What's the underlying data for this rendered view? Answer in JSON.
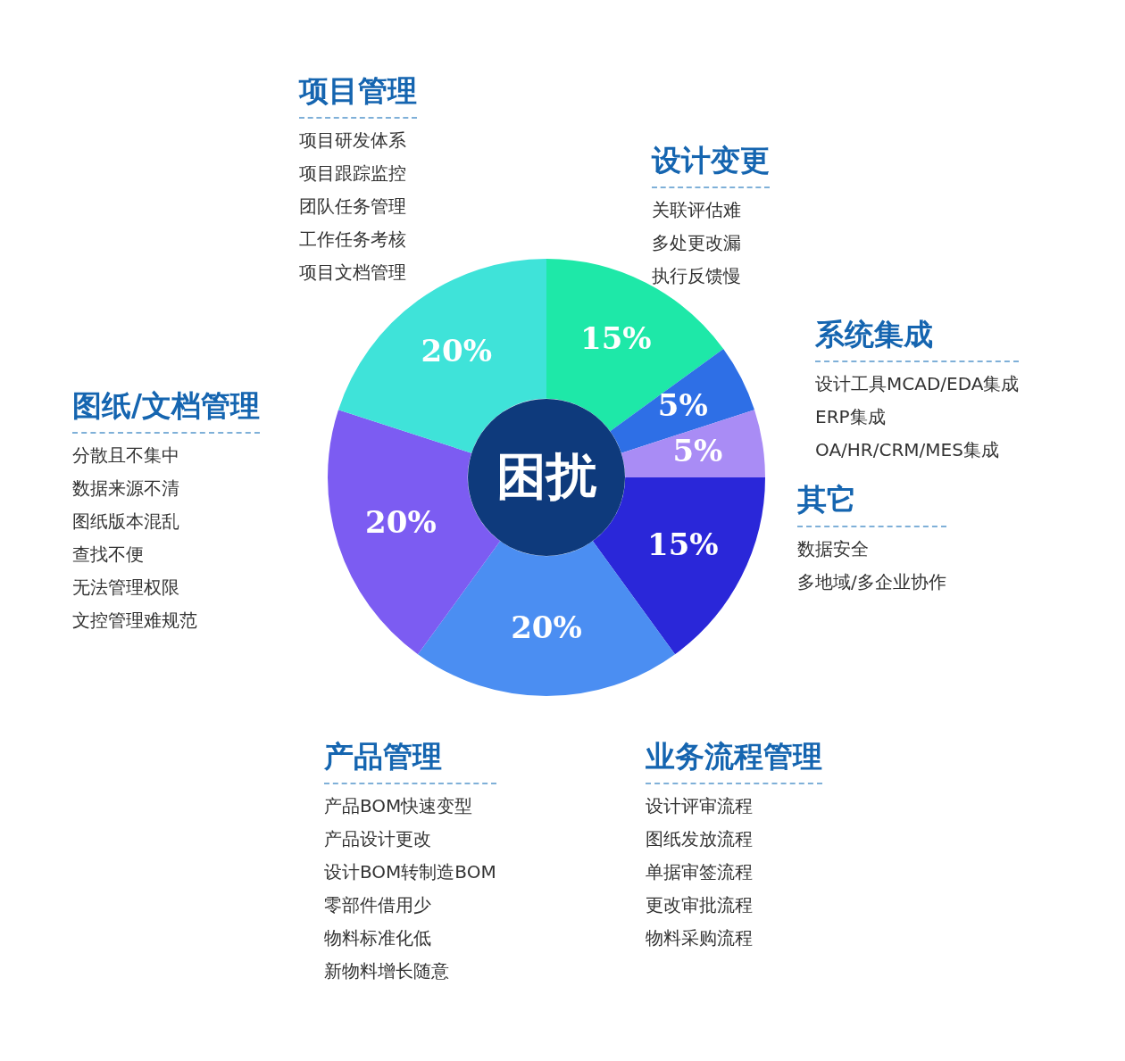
{
  "chart_data": {
    "type": "donut",
    "categories": [
      "设计变更",
      "系统集成",
      "其它",
      "业务流程管理",
      "产品管理",
      "图纸/文档管理",
      "项目管理"
    ],
    "values": [
      15,
      5,
      5,
      15,
      20,
      20,
      20
    ],
    "value_labels": [
      "15%",
      "5%",
      "5%",
      "15%",
      "20%",
      "20%",
      "20%"
    ],
    "colors": [
      "#1ee8a8",
      "#2e6fe6",
      "#a98cf5",
      "#2a27d9",
      "#4b8ef2",
      "#7c5cf2",
      "#3fe3d9"
    ],
    "annotations": [
      "困扰",
      "关联评估难",
      "多处更改漏",
      "执行反馈慢",
      "设计工具MCAD/EDA集成",
      "ERP集成",
      "OA/HR/CRM/MES集成",
      "数据安全",
      "多地域/多企业协作",
      "设计评审流程",
      "图纸发放流程",
      "单据审签流程",
      "更改审批流程",
      "物料采购流程",
      "产品BOM快速变型",
      "产品设计更改",
      "设计BOM转制造BOM",
      "零部件借用少",
      "物料标准化低",
      "新物料增长随意",
      "分散且不集中",
      "数据来源不清",
      "图纸版本混乱",
      "查找不便",
      "无法管理权限",
      "文控管理难规范",
      "项目研发体系",
      "项目跟踪监控",
      "团队任务管理",
      "工作任务考核",
      "项目文档管理"
    ],
    "legend": false
  }
}
